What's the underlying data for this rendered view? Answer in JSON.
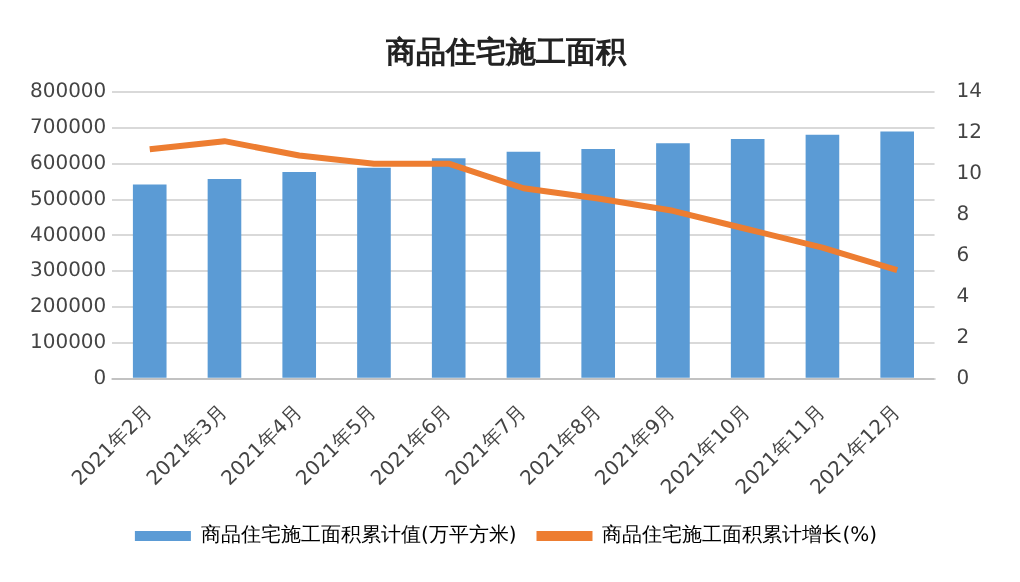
{
  "chart_data": {
    "type": "bar",
    "title": "商品住宅施工面积",
    "categories": [
      "2021年2月",
      "2021年3月",
      "2021年4月",
      "2021年5月",
      "2021年6月",
      "2021年7月",
      "2021年8月",
      "2021年9月",
      "2021年10月",
      "2021年11月",
      "2021年12月"
    ],
    "series": [
      {
        "name": "商品住宅施工面积累计值(万平方米)",
        "color": "#5b9bd5",
        "values": [
          542000,
          557000,
          577000,
          589000,
          615000,
          633000,
          641000,
          657000,
          669000,
          681000,
          690000
        ]
      },
      {
        "name": "商品住宅施工面积累计增长(%)",
        "type": "line",
        "axis": "y2",
        "color": "#ed7d31",
        "marker": "none",
        "values": [
          11.2,
          11.6,
          10.9,
          10.5,
          10.5,
          9.3,
          8.8,
          8.2,
          7.3,
          6.4,
          5.3
        ]
      }
    ],
    "ylim": [
      0,
      800000
    ],
    "yticks": [
      0,
      100000,
      200000,
      300000,
      400000,
      500000,
      600000,
      700000,
      800000
    ],
    "y2lim": [
      0,
      14
    ],
    "y2ticks": [
      0,
      2,
      4,
      6,
      8,
      10,
      12,
      14
    ],
    "grid": "y",
    "legend": "bottom"
  }
}
